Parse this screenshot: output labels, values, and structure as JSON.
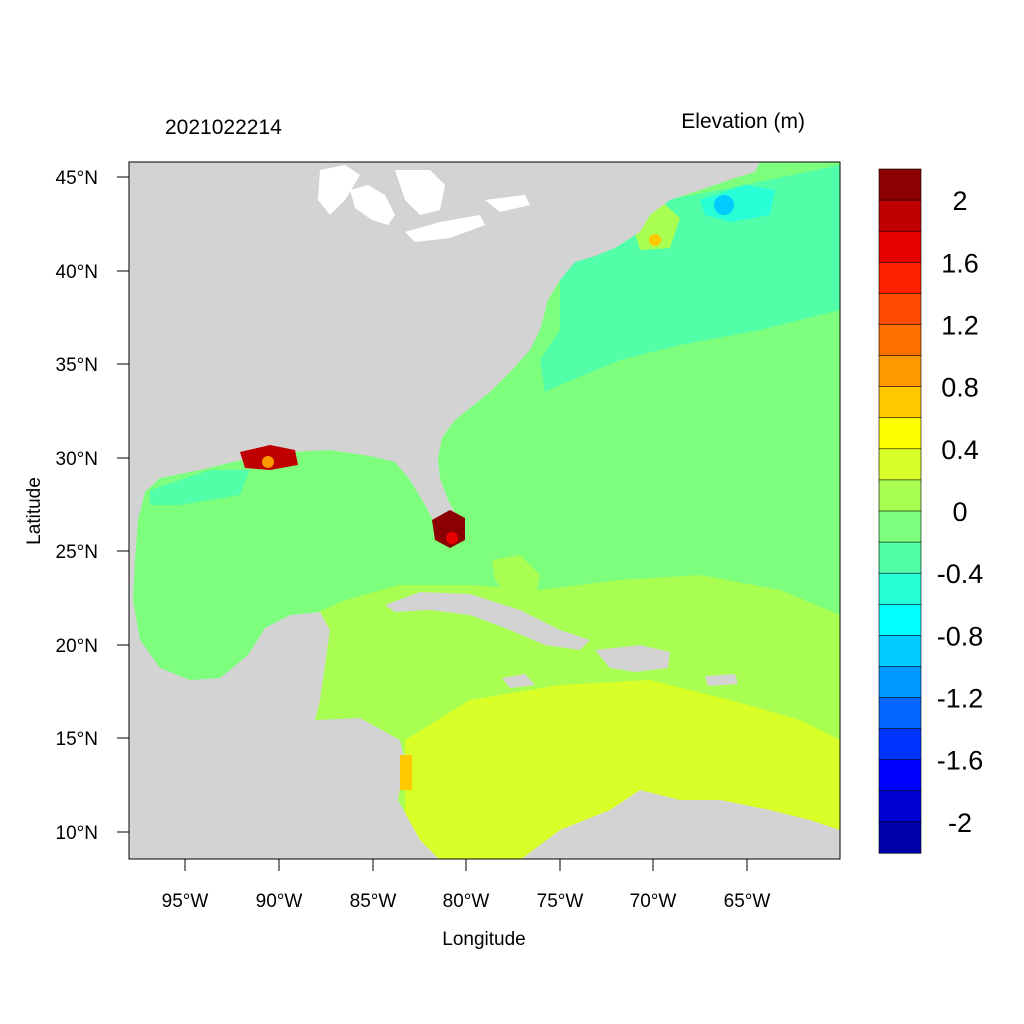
{
  "timestamp_label": "2021022214",
  "variable_label": "Elevation (m)",
  "x_axis_label": "Longitude",
  "y_axis_label": "Latitude",
  "lat_ticks": [
    "45°N",
    "40°N",
    "35°N",
    "30°N",
    "25°N",
    "20°N",
    "15°N",
    "10°N"
  ],
  "lat_tick_values": [
    45,
    40,
    35,
    30,
    25,
    20,
    15,
    10
  ],
  "lon_ticks": [
    "95°W",
    "90°W",
    "85°W",
    "80°W",
    "75°W",
    "70°W",
    "65°W"
  ],
  "lon_tick_values": [
    -95,
    -90,
    -85,
    -80,
    -75,
    -70,
    -65
  ],
  "map_extent": {
    "lon_min": -98,
    "lon_max": -60,
    "lat_min": 8.5,
    "lat_max": 46
  },
  "colorbar": {
    "labels": [
      "2",
      "1.6",
      "1.2",
      "0.8",
      "0.4",
      "0",
      "-0.4",
      "-0.8",
      "-1.2",
      "-1.6",
      "-2"
    ],
    "colors": [
      "#8b0000",
      "#c00000",
      "#e60000",
      "#ff2200",
      "#ff4a00",
      "#ff7000",
      "#ff9900",
      "#ffc800",
      "#ffff00",
      "#d9ff29",
      "#a8ff52",
      "#7dff7d",
      "#52ffa8",
      "#29ffd6",
      "#00ffff",
      "#00ccff",
      "#0099ff",
      "#0066ff",
      "#0033ff",
      "#0000ff",
      "#0000d0",
      "#0000a8"
    ]
  },
  "colors": {
    "land": "#d3d3d3",
    "ocean_atlantic": "#7dff7d",
    "caribbean": "#a8ff52",
    "caribbean_south": "#d9ff29",
    "gulf": "#7dff7d"
  }
}
